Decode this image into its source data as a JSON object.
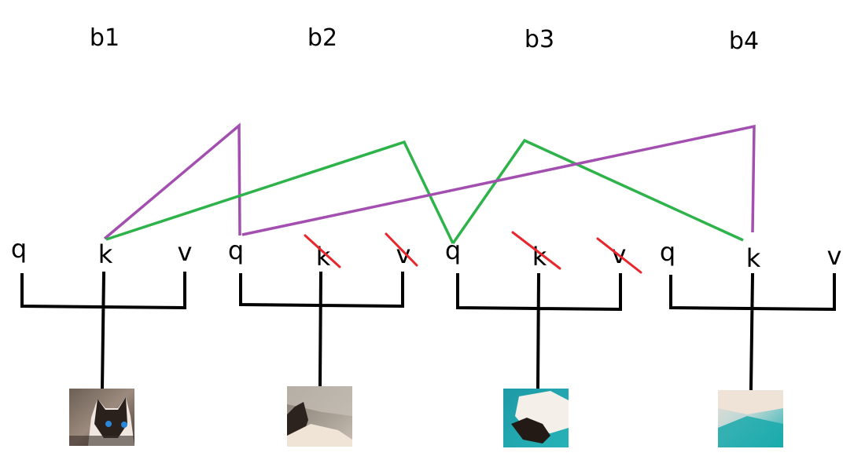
{
  "blocks": [
    {
      "label": "b1",
      "q": "q",
      "k": "k",
      "v": "v",
      "k_masked": false,
      "v_masked": false,
      "image": "cat-face-icon"
    },
    {
      "label": "b2",
      "q": "q",
      "k": "k",
      "v": "v",
      "k_masked": true,
      "v_masked": true,
      "image": "cat-partial-icon"
    },
    {
      "label": "b3",
      "q": "q",
      "k": "k",
      "v": "v",
      "k_masked": true,
      "v_masked": true,
      "image": "cat-body-icon"
    },
    {
      "label": "b4",
      "q": "q",
      "k": "k",
      "v": "v",
      "k_masked": false,
      "v_masked": false,
      "image": "blanket-icon"
    }
  ],
  "connections": [
    {
      "color": "#a24fb0",
      "from": "b1.k",
      "to": "b2.q"
    },
    {
      "color": "#2db34a",
      "from": "b1.k",
      "to": "b3.q"
    },
    {
      "color": "#2db34a",
      "from": "b3.q",
      "to": "b4.k"
    },
    {
      "color": "#a24fb0",
      "from": "b2.q",
      "to": "b4.k"
    }
  ],
  "colors": {
    "purple": "#a24fb0",
    "green": "#2db34a",
    "strike": "#e8262b",
    "tree": "#000000"
  }
}
